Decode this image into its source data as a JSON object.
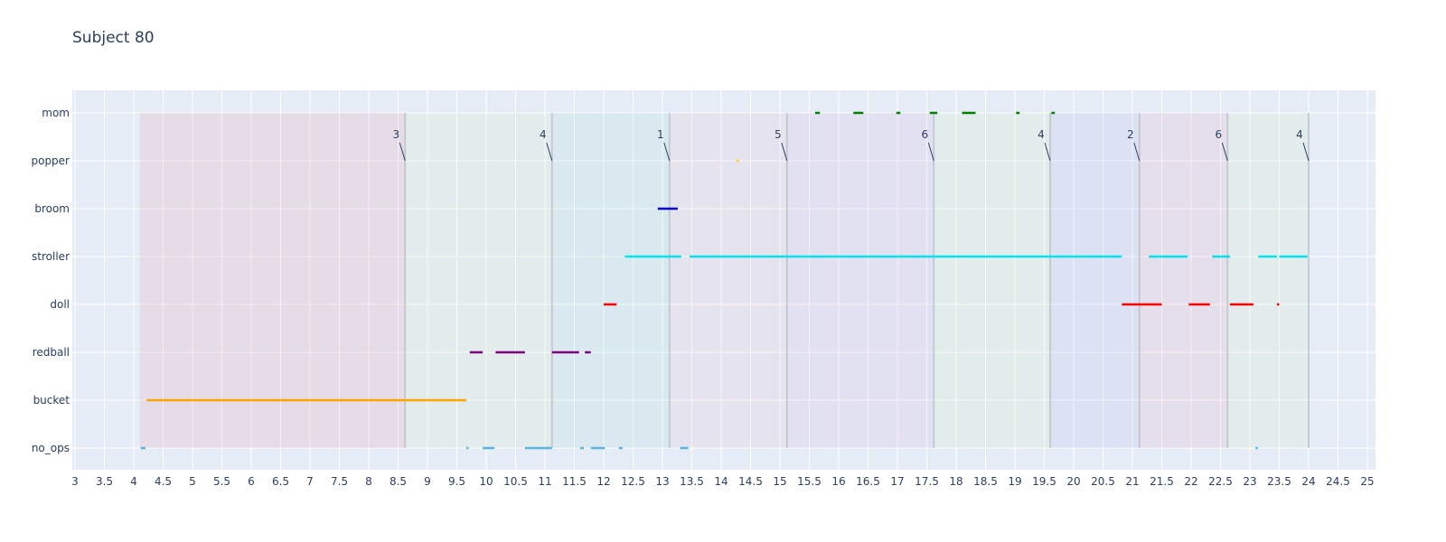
{
  "chart_data": {
    "type": "timeline",
    "title": "Subject 80",
    "xlim": [
      3,
      25
    ],
    "x_ticks": [
      3,
      3.5,
      4,
      4.5,
      5,
      5.5,
      6,
      6.5,
      7,
      7.5,
      8,
      8.5,
      9,
      9.5,
      10,
      10.5,
      11,
      11.5,
      12,
      12.5,
      13,
      13.5,
      14,
      14.5,
      15,
      15.5,
      16,
      16.5,
      17,
      17.5,
      18,
      18.5,
      19,
      19.5,
      20,
      20.5,
      21,
      21.5,
      22,
      22.5,
      23,
      23.5,
      24,
      24.5,
      25
    ],
    "categories": [
      "mom",
      "popper",
      "broom",
      "stroller",
      "doll",
      "redball",
      "bucket",
      "no_ops"
    ],
    "bands": [
      {
        "start": 4.1,
        "end": 8.62,
        "color": "#e8a0b4"
      },
      {
        "start": 8.62,
        "end": 11.12,
        "color": "#d8f0c8"
      },
      {
        "start": 11.12,
        "end": 13.12,
        "color": "#a8e0d8"
      },
      {
        "start": 13.12,
        "end": 15.12,
        "color": "#e8c8d0"
      },
      {
        "start": 15.12,
        "end": 17.62,
        "color": "#d8b8e0"
      },
      {
        "start": 17.62,
        "end": 19.6,
        "color": "#d8f0c8"
      },
      {
        "start": 19.6,
        "end": 21.12,
        "color": "#b8b8f0"
      },
      {
        "start": 21.12,
        "end": 22.62,
        "color": "#e8b0c8"
      },
      {
        "start": 22.62,
        "end": 24.0,
        "color": "#d8f0c8"
      }
    ],
    "boundaries": [
      8.62,
      11.12,
      13.12,
      15.12,
      17.62,
      19.6,
      21.12,
      22.62,
      24.0
    ],
    "annotations": [
      {
        "x": 8.62,
        "text": "3"
      },
      {
        "x": 11.12,
        "text": "4"
      },
      {
        "x": 13.12,
        "text": "1"
      },
      {
        "x": 15.12,
        "text": "5"
      },
      {
        "x": 17.62,
        "text": "6"
      },
      {
        "x": 19.6,
        "text": "4"
      },
      {
        "x": 21.12,
        "text": "2"
      },
      {
        "x": 22.62,
        "text": "6"
      },
      {
        "x": 24.0,
        "text": "4"
      }
    ],
    "series": [
      {
        "category": "mom",
        "color": "#008000",
        "segments": [
          [
            15.6,
            15.68
          ],
          [
            16.25,
            16.42
          ],
          [
            16.98,
            17.05
          ],
          [
            17.55,
            17.68
          ],
          [
            18.1,
            18.33
          ],
          [
            19.02,
            19.08
          ],
          [
            19.62,
            19.68
          ]
        ]
      },
      {
        "category": "popper",
        "color": "#ffd700",
        "segments": [
          [
            14.26,
            14.3
          ]
        ]
      },
      {
        "category": "broom",
        "color": "#0000cd",
        "segments": [
          [
            12.92,
            13.26
          ]
        ]
      },
      {
        "category": "stroller",
        "color": "#00e5ee",
        "segments": [
          [
            12.36,
            13.32
          ],
          [
            13.46,
            20.82
          ],
          [
            21.28,
            21.94
          ],
          [
            22.36,
            22.66
          ],
          [
            23.14,
            23.46
          ],
          [
            23.5,
            23.98
          ]
        ]
      },
      {
        "category": "doll",
        "color": "#ff0000",
        "segments": [
          [
            12.0,
            12.22
          ],
          [
            20.82,
            21.5
          ],
          [
            21.96,
            22.32
          ],
          [
            22.66,
            23.06
          ],
          [
            23.46,
            23.5
          ]
        ]
      },
      {
        "category": "redball",
        "color": "#800080",
        "segments": [
          [
            9.72,
            9.94
          ],
          [
            10.16,
            10.66
          ],
          [
            11.12,
            11.58
          ],
          [
            11.68,
            11.78
          ]
        ]
      },
      {
        "category": "bucket",
        "color": "#ffa500",
        "segments": [
          [
            4.22,
            9.66
          ]
        ]
      },
      {
        "category": "no_ops",
        "color": "#5ab4e0",
        "segments": [
          [
            4.12,
            4.2
          ],
          [
            9.66,
            9.7
          ],
          [
            9.94,
            10.14
          ],
          [
            10.66,
            11.12
          ],
          [
            11.6,
            11.66
          ],
          [
            11.78,
            12.02
          ],
          [
            12.26,
            12.32
          ],
          [
            13.3,
            13.44
          ],
          [
            23.1,
            23.14
          ]
        ]
      }
    ],
    "grid": true
  }
}
